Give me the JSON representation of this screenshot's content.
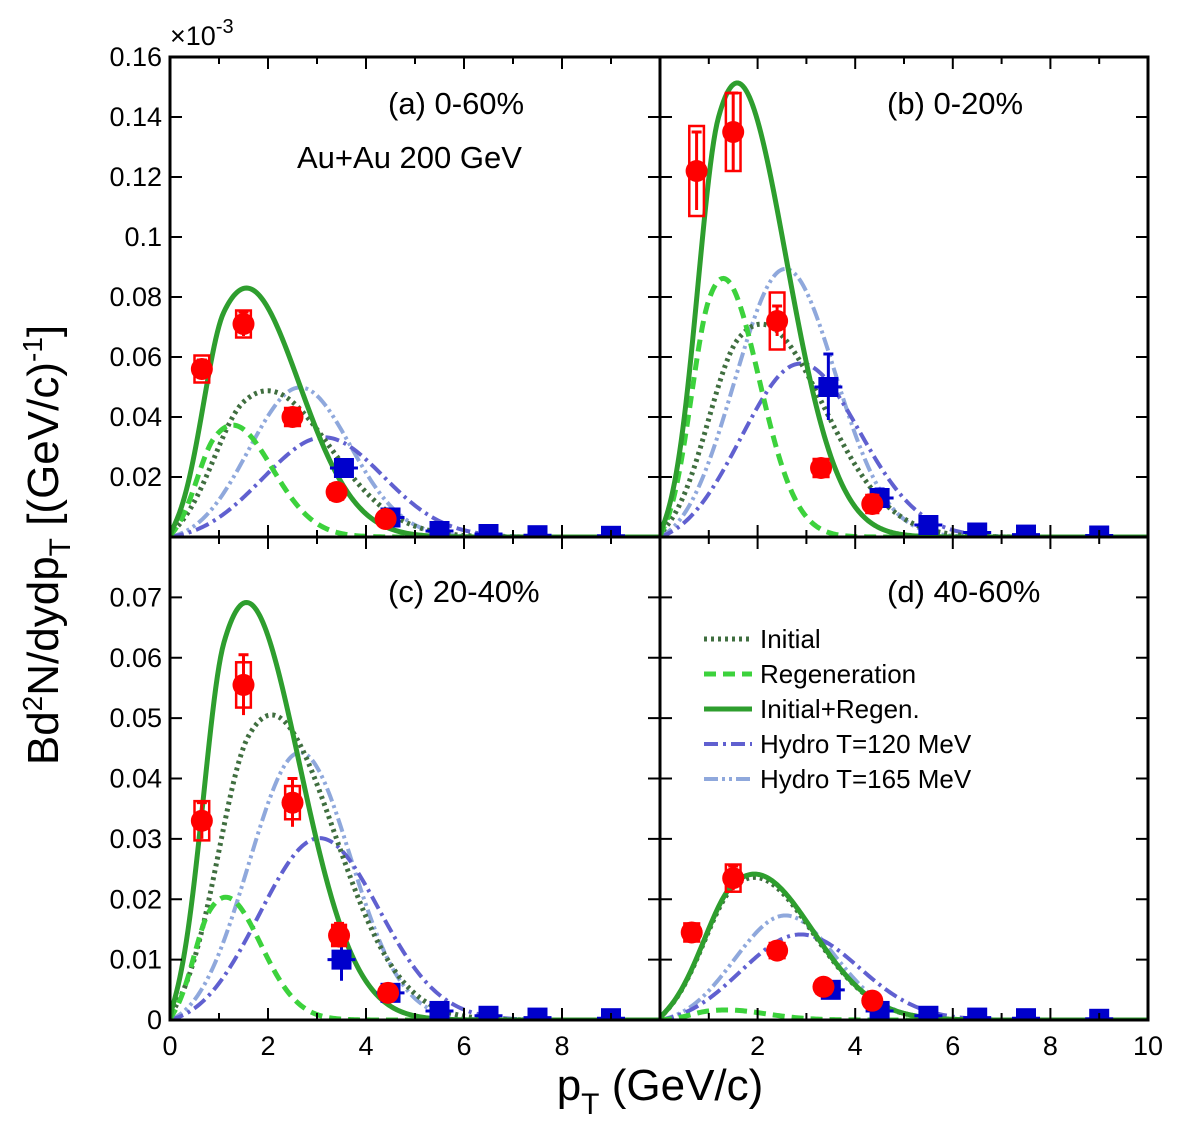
{
  "chart_data": {
    "type": "scatter",
    "x_axis": {
      "label": "p",
      "label_subscript": "T",
      "label_suffix": " (GeV/c)",
      "xlim": [
        0,
        10
      ],
      "ticks_left": [
        "0",
        "2",
        "4",
        "6",
        "8"
      ],
      "ticks_right": [
        "2",
        "4",
        "6",
        "8",
        "10"
      ]
    },
    "y_axis": {
      "label_parts": [
        "Bd",
        "2",
        "N/dydp",
        "T",
        " [(GeV/c)",
        "-1",
        "]"
      ],
      "multiplier": "×10",
      "multiplier_exp": "-3",
      "top_ylim": [
        0,
        0.16
      ],
      "top_ticks": [
        "0.02",
        "0.04",
        "0.06",
        "0.08",
        "0.1",
        "0.12",
        "0.14",
        "0.16"
      ],
      "bottom_ylim": [
        0,
        0.08
      ],
      "bottom_ticks": [
        "0",
        "0.01",
        "0.02",
        "0.03",
        "0.04",
        "0.05",
        "0.06",
        "0.07"
      ]
    },
    "colors": {
      "initial": "#3f6e3f",
      "regeneration": "#3cd23c",
      "initial_regen": "#2e9e2e",
      "hydro120": "#6060d0",
      "hydro165": "#8fa8dc",
      "red_points": "#ff0000",
      "blue_points": "#0000cc"
    },
    "legend": [
      {
        "key": "initial",
        "label": "Initial",
        "dash": "3,4",
        "width": 5
      },
      {
        "key": "regeneration",
        "label": "Regeneration",
        "dash": "12,7",
        "width": 5
      },
      {
        "key": "initial_regen",
        "label": "Initial+Regen.",
        "dash": "",
        "width": 5
      },
      {
        "key": "hydro120",
        "label": "Hydro T=120 MeV",
        "dash": "14,5,3,5",
        "width": 4
      },
      {
        "key": "hydro165",
        "label": "Hydro T=165 MeV",
        "dash": "14,4,3,4,3,4",
        "width": 4
      }
    ],
    "panels": [
      {
        "id": "a",
        "label": "(a) 0-60%",
        "sublabel": "Au+Au 200 GeV",
        "row": 0,
        "col": 0,
        "curves": {
          "initial": {
            "A": 0.045,
            "mu": 1.5,
            "sl": 0.8,
            "sr": 1.4,
            "n": 0.5
          },
          "regeneration": {
            "A": 0.033,
            "mu": 0.9,
            "sl": 0.5,
            "sr": 0.9,
            "n": 0.6
          },
          "initial_regen": {
            "A": 0.075,
            "mu": 1.1,
            "sl": 0.55,
            "sr": 1.2,
            "n": 0.5
          },
          "hydro120": {
            "A": 0.03,
            "mu": 2.6,
            "sl": 1.5,
            "sr": 1.3,
            "n": 1.0
          },
          "hydro165": {
            "A": 0.045,
            "mu": 2.2,
            "sl": 1.2,
            "sr": 1.1,
            "n": 1.0
          }
        },
        "red_points": [
          {
            "x": 0.65,
            "y": 0.056,
            "err": 0.003,
            "bw": 0.3,
            "bh": 0.009
          },
          {
            "x": 1.5,
            "y": 0.071,
            "err": 0.004,
            "bw": 0.3,
            "bh": 0.009
          },
          {
            "x": 2.5,
            "y": 0.04,
            "err": 0.002,
            "bw": 0.3,
            "bh": 0.006
          },
          {
            "x": 3.4,
            "y": 0.015,
            "err": 0.001,
            "bw": 0.26,
            "bh": 0.005
          },
          {
            "x": 4.4,
            "y": 0.006,
            "err": 0.001,
            "bw": 0.24,
            "bh": 0.004
          }
        ],
        "blue_points": [
          {
            "x": 3.55,
            "y": 0.023,
            "err": 0.002
          },
          {
            "x": 4.5,
            "y": 0.0065,
            "err": 0.001
          },
          {
            "x": 5.5,
            "y": 0.002,
            "err": 0
          },
          {
            "x": 6.5,
            "y": 0.001,
            "err": 0
          },
          {
            "x": 7.5,
            "y": 0.0006,
            "err": 0
          },
          {
            "x": 9.0,
            "y": 0.0004,
            "err": 0
          }
        ]
      },
      {
        "id": "b",
        "label": "(b) 0-20%",
        "sublabel": "",
        "row": 0,
        "col": 1,
        "curves": {
          "initial": {
            "A": 0.066,
            "mu": 1.6,
            "sl": 0.8,
            "sr": 1.4,
            "n": 0.5
          },
          "regeneration": {
            "A": 0.079,
            "mu": 1.0,
            "sl": 0.5,
            "sr": 0.8,
            "n": 0.6
          },
          "initial_regen": {
            "A": 0.14,
            "mu": 1.2,
            "sl": 0.55,
            "sr": 1.1,
            "n": 0.5
          },
          "hydro120": {
            "A": 0.051,
            "mu": 2.3,
            "sl": 1.4,
            "sr": 1.3,
            "n": 1.0
          },
          "hydro165": {
            "A": 0.08,
            "mu": 2.1,
            "sl": 1.2,
            "sr": 1.1,
            "n": 1.0
          }
        },
        "red_points": [
          {
            "x": 0.75,
            "y": 0.122,
            "err": 0.013,
            "bw": 0.3,
            "bh": 0.03
          },
          {
            "x": 1.5,
            "y": 0.135,
            "err": 0.013,
            "bw": 0.3,
            "bh": 0.026
          },
          {
            "x": 2.4,
            "y": 0.072,
            "err": 0.005,
            "bw": 0.3,
            "bh": 0.019
          },
          {
            "x": 3.3,
            "y": 0.023,
            "err": 0.002,
            "bw": 0.3,
            "bh": 0.006
          },
          {
            "x": 4.35,
            "y": 0.011,
            "err": 0.003,
            "bw": 0.24,
            "bh": 0.006
          }
        ],
        "blue_points": [
          {
            "x": 3.45,
            "y": 0.05,
            "err": 0.011
          },
          {
            "x": 4.5,
            "y": 0.013,
            "err": 0.003
          },
          {
            "x": 5.5,
            "y": 0.004,
            "err": 0
          },
          {
            "x": 6.5,
            "y": 0.0015,
            "err": 0
          },
          {
            "x": 7.5,
            "y": 0.0008,
            "err": 0
          },
          {
            "x": 9.0,
            "y": 0.0005,
            "err": 0
          }
        ]
      },
      {
        "id": "c",
        "label": "(c) 20-40%",
        "sublabel": "",
        "row": 1,
        "col": 0,
        "curves": {
          "initial": {
            "A": 0.047,
            "mu": 1.6,
            "sl": 0.8,
            "sr": 1.4,
            "n": 0.5
          },
          "regeneration": {
            "A": 0.018,
            "mu": 0.8,
            "sl": 0.45,
            "sr": 0.8,
            "n": 0.6
          },
          "initial_regen": {
            "A": 0.0625,
            "mu": 1.1,
            "sl": 0.55,
            "sr": 1.2,
            "n": 0.5
          },
          "hydro120": {
            "A": 0.027,
            "mu": 2.5,
            "sl": 1.4,
            "sr": 1.3,
            "n": 1.0
          },
          "hydro165": {
            "A": 0.04,
            "mu": 2.2,
            "sl": 1.2,
            "sr": 1.1,
            "n": 1.0
          }
        },
        "red_points": [
          {
            "x": 0.65,
            "y": 0.033,
            "err": 0.003,
            "bw": 0.3,
            "bh": 0.0065
          },
          {
            "x": 1.5,
            "y": 0.0555,
            "err": 0.005,
            "bw": 0.3,
            "bh": 0.0075
          },
          {
            "x": 2.5,
            "y": 0.036,
            "err": 0.004,
            "bw": 0.3,
            "bh": 0.0055
          },
          {
            "x": 3.45,
            "y": 0.014,
            "err": 0.002,
            "bw": 0.28,
            "bh": 0.0035
          },
          {
            "x": 4.45,
            "y": 0.0045,
            "err": 0.0005,
            "bw": 0.24,
            "bh": 0.002
          }
        ],
        "blue_points": [
          {
            "x": 3.5,
            "y": 0.01,
            "err": 0.0035
          },
          {
            "x": 4.5,
            "y": 0.0045,
            "err": 0.001
          },
          {
            "x": 5.5,
            "y": 0.0015,
            "err": 0
          },
          {
            "x": 6.5,
            "y": 0.0007,
            "err": 0
          },
          {
            "x": 7.5,
            "y": 0.0004,
            "err": 0
          },
          {
            "x": 9.0,
            "y": 0.0003,
            "err": 0
          }
        ]
      },
      {
        "id": "d",
        "label": "(d) 40-60%",
        "sublabel": "",
        "row": 1,
        "col": 1,
        "curves": {
          "initial": {
            "A": 0.022,
            "mu": 1.5,
            "sl": 0.8,
            "sr": 1.3,
            "n": 0.5
          },
          "regeneration": {
            "A": 0.0015,
            "mu": 1.0,
            "sl": 0.5,
            "sr": 0.9,
            "n": 0.6
          },
          "initial_regen": {
            "A": 0.0225,
            "mu": 1.5,
            "sl": 0.8,
            "sr": 1.3,
            "n": 0.5
          },
          "hydro120": {
            "A": 0.0125,
            "mu": 2.3,
            "sl": 1.4,
            "sr": 1.3,
            "n": 1.0
          },
          "hydro165": {
            "A": 0.0155,
            "mu": 2.1,
            "sl": 1.2,
            "sr": 1.1,
            "n": 1.0
          }
        },
        "red_points": [
          {
            "x": 0.65,
            "y": 0.0145,
            "err": 0.001,
            "bw": 0.3,
            "bh": 0.003
          },
          {
            "x": 1.5,
            "y": 0.0235,
            "err": 0.002,
            "bw": 0.3,
            "bh": 0.0045
          },
          {
            "x": 2.4,
            "y": 0.0115,
            "err": 0.001,
            "bw": 0.3,
            "bh": 0.0025
          },
          {
            "x": 3.35,
            "y": 0.0055,
            "err": 0.0008,
            "bw": 0.28,
            "bh": 0.0022
          },
          {
            "x": 4.35,
            "y": 0.0032,
            "err": 0.0005,
            "bw": 0.22,
            "bh": 0.002
          }
        ],
        "blue_points": [
          {
            "x": 3.5,
            "y": 0.005,
            "err": 0.001
          },
          {
            "x": 4.5,
            "y": 0.0015,
            "err": 0
          },
          {
            "x": 5.5,
            "y": 0.0007,
            "err": 0
          },
          {
            "x": 6.5,
            "y": 0.0004,
            "err": 0
          },
          {
            "x": 7.5,
            "y": 0.0003,
            "err": 0
          },
          {
            "x": 9.0,
            "y": 0.0002,
            "err": 0
          }
        ]
      }
    ]
  }
}
